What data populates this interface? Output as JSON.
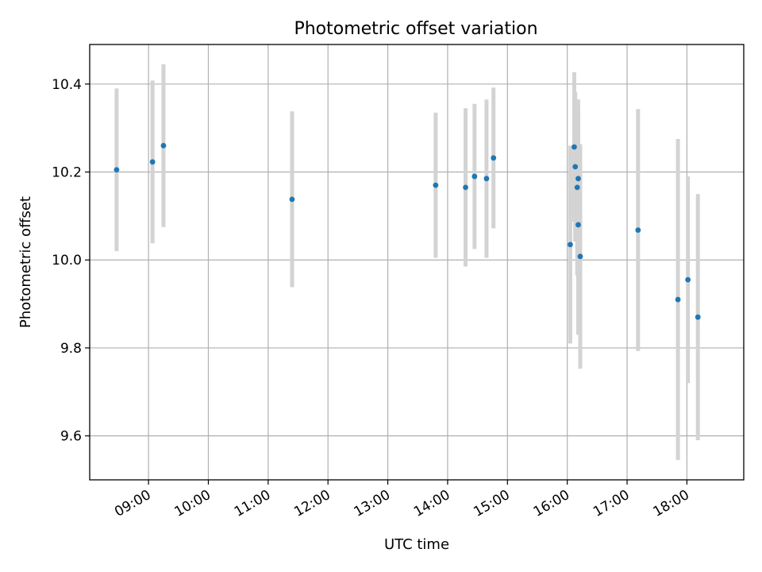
{
  "chart_data": {
    "type": "scatter",
    "title": "Photometric offset variation",
    "xlabel": "UTC time",
    "ylabel": "Photometric offset",
    "x_ticks": [
      "09:00",
      "10:00",
      "11:00",
      "12:00",
      "13:00",
      "14:00",
      "15:00",
      "16:00",
      "17:00",
      "18:00"
    ],
    "y_ticks": [
      "9.6",
      "9.8",
      "10.0",
      "10.2",
      "10.4"
    ],
    "xlim": [
      "08:01",
      "18:57"
    ],
    "ylim": [
      9.5,
      10.49
    ],
    "grid": true,
    "colors": {
      "point": "#1f77b4",
      "errorbar": "#d3d3d3"
    },
    "series": [
      {
        "points": [
          {
            "x": "08:28",
            "y": 10.205,
            "err": 0.185
          },
          {
            "x": "09:04",
            "y": 10.223,
            "err": 0.185
          },
          {
            "x": "09:15",
            "y": 10.26,
            "err": 0.185
          },
          {
            "x": "11:24",
            "y": 10.138,
            "err": 0.2
          },
          {
            "x": "13:48",
            "y": 10.17,
            "err": 0.165
          },
          {
            "x": "14:18",
            "y": 10.165,
            "err": 0.18
          },
          {
            "x": "14:27",
            "y": 10.19,
            "err": 0.165
          },
          {
            "x": "14:39",
            "y": 10.185,
            "err": 0.18
          },
          {
            "x": "14:46",
            "y": 10.232,
            "err": 0.16
          },
          {
            "x": "16:03",
            "y": 10.035,
            "err": 0.225
          },
          {
            "x": "16:07",
            "y": 10.257,
            "err": 0.17
          },
          {
            "x": "16:08",
            "y": 10.212,
            "err": 0.17
          },
          {
            "x": "16:10",
            "y": 10.165,
            "err": 0.2
          },
          {
            "x": "16:11",
            "y": 10.185,
            "err": 0.18
          },
          {
            "x": "16:11",
            "y": 10.08,
            "err": 0.25
          },
          {
            "x": "16:13",
            "y": 10.008,
            "err": 0.255
          },
          {
            "x": "17:11",
            "y": 10.068,
            "err": 0.275
          },
          {
            "x": "17:51",
            "y": 9.91,
            "err": 0.365
          },
          {
            "x": "18:01",
            "y": 9.955,
            "err": 0.235
          },
          {
            "x": "18:11",
            "y": 9.87,
            "err": 0.28
          }
        ]
      }
    ]
  }
}
